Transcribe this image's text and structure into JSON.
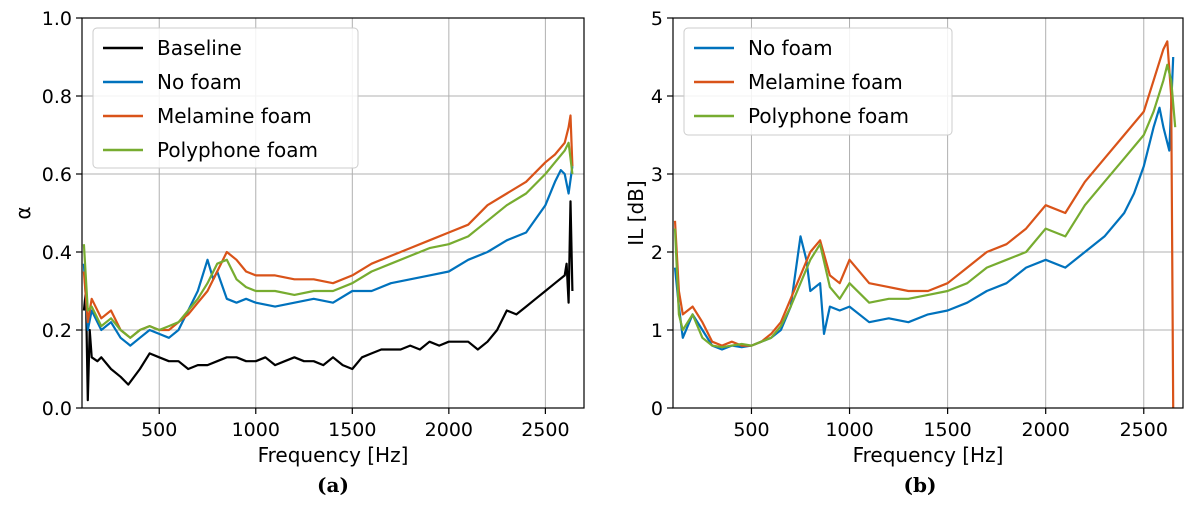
{
  "chart_data": [
    {
      "type": "line",
      "panel_caption": "(a)",
      "xlabel": "Frequency [Hz]",
      "ylabel": "α",
      "xlim": [
        100,
        2700
      ],
      "ylim": [
        0,
        1.0
      ],
      "xticks": [
        500,
        1000,
        1500,
        2000,
        2500
      ],
      "xtick_labels": [
        "500",
        "1000",
        "1500",
        "2000",
        "2500"
      ],
      "yticks": [
        0,
        0.2,
        0.4,
        0.6,
        0.8,
        1.0
      ],
      "ytick_labels": [
        "0.0",
        "0.2",
        "0.4",
        "0.6",
        "0.8",
        "1.0"
      ],
      "grid": true,
      "legend_position": "upper-left",
      "series": [
        {
          "name": "Baseline",
          "color": "#000000",
          "x": [
            110,
            120,
            130,
            140,
            150,
            180,
            200,
            250,
            300,
            340,
            400,
            450,
            500,
            550,
            600,
            650,
            700,
            750,
            800,
            850,
            900,
            950,
            1000,
            1050,
            1100,
            1150,
            1200,
            1250,
            1300,
            1350,
            1400,
            1450,
            1500,
            1550,
            1600,
            1650,
            1700,
            1750,
            1800,
            1850,
            1900,
            1950,
            2000,
            2050,
            2100,
            2150,
            2200,
            2250,
            2300,
            2350,
            2400,
            2450,
            2500,
            2550,
            2600,
            2610,
            2620,
            2630,
            2640
          ],
          "y": [
            0.25,
            0.3,
            0.02,
            0.2,
            0.13,
            0.12,
            0.13,
            0.1,
            0.08,
            0.06,
            0.1,
            0.14,
            0.13,
            0.12,
            0.12,
            0.1,
            0.11,
            0.11,
            0.12,
            0.13,
            0.13,
            0.12,
            0.12,
            0.13,
            0.11,
            0.12,
            0.13,
            0.12,
            0.12,
            0.11,
            0.13,
            0.11,
            0.1,
            0.13,
            0.14,
            0.15,
            0.15,
            0.15,
            0.16,
            0.15,
            0.17,
            0.16,
            0.17,
            0.17,
            0.17,
            0.15,
            0.17,
            0.2,
            0.25,
            0.24,
            0.26,
            0.28,
            0.3,
            0.32,
            0.34,
            0.37,
            0.27,
            0.53,
            0.3
          ]
        },
        {
          "name": "No foam",
          "color": "#0072BD",
          "x": [
            110,
            130,
            150,
            200,
            250,
            300,
            350,
            400,
            450,
            500,
            550,
            600,
            650,
            700,
            750,
            780,
            800,
            850,
            900,
            950,
            1000,
            1100,
            1200,
            1300,
            1400,
            1500,
            1600,
            1700,
            1800,
            1900,
            2000,
            2100,
            2200,
            2300,
            2400,
            2500,
            2550,
            2580,
            2600,
            2620,
            2640
          ],
          "y": [
            0.37,
            0.2,
            0.25,
            0.2,
            0.22,
            0.18,
            0.16,
            0.18,
            0.2,
            0.19,
            0.18,
            0.2,
            0.25,
            0.3,
            0.38,
            0.33,
            0.35,
            0.28,
            0.27,
            0.28,
            0.27,
            0.26,
            0.27,
            0.28,
            0.27,
            0.3,
            0.3,
            0.32,
            0.33,
            0.34,
            0.35,
            0.38,
            0.4,
            0.43,
            0.45,
            0.52,
            0.58,
            0.61,
            0.6,
            0.55,
            0.62
          ]
        },
        {
          "name": "Melamine foam",
          "color": "#D95319",
          "x": [
            110,
            130,
            150,
            200,
            250,
            300,
            350,
            400,
            450,
            500,
            550,
            600,
            650,
            700,
            750,
            800,
            850,
            900,
            950,
            1000,
            1100,
            1200,
            1300,
            1400,
            1500,
            1600,
            1700,
            1800,
            1900,
            2000,
            2100,
            2200,
            2300,
            2400,
            2500,
            2550,
            2600,
            2620,
            2630,
            2640
          ],
          "y": [
            0.35,
            0.22,
            0.28,
            0.23,
            0.25,
            0.2,
            0.18,
            0.2,
            0.21,
            0.2,
            0.2,
            0.22,
            0.24,
            0.27,
            0.3,
            0.35,
            0.4,
            0.38,
            0.35,
            0.34,
            0.34,
            0.33,
            0.33,
            0.32,
            0.34,
            0.37,
            0.39,
            0.41,
            0.43,
            0.45,
            0.47,
            0.52,
            0.55,
            0.58,
            0.63,
            0.65,
            0.68,
            0.72,
            0.75,
            0.62
          ]
        },
        {
          "name": "Polyphone foam",
          "color": "#77AC30",
          "x": [
            110,
            130,
            150,
            200,
            250,
            300,
            350,
            400,
            450,
            500,
            550,
            600,
            650,
            700,
            750,
            800,
            850,
            900,
            950,
            1000,
            1100,
            1200,
            1300,
            1400,
            1500,
            1600,
            1700,
            1800,
            1900,
            2000,
            2100,
            2200,
            2300,
            2400,
            2500,
            2550,
            2600,
            2620,
            2640
          ],
          "y": [
            0.42,
            0.25,
            0.26,
            0.21,
            0.23,
            0.2,
            0.18,
            0.2,
            0.21,
            0.2,
            0.21,
            0.22,
            0.25,
            0.28,
            0.32,
            0.37,
            0.38,
            0.33,
            0.31,
            0.3,
            0.3,
            0.29,
            0.3,
            0.3,
            0.32,
            0.35,
            0.37,
            0.39,
            0.41,
            0.42,
            0.44,
            0.48,
            0.52,
            0.55,
            0.6,
            0.63,
            0.66,
            0.68,
            0.6
          ]
        }
      ]
    },
    {
      "type": "line",
      "panel_caption": "(b)",
      "xlabel": "Frequency [Hz]",
      "ylabel": "IL [dB]",
      "xlim": [
        100,
        2700
      ],
      "ylim": [
        0,
        5
      ],
      "xticks": [
        500,
        1000,
        1500,
        2000,
        2500
      ],
      "xtick_labels": [
        "500",
        "1000",
        "1500",
        "2000",
        "2500"
      ],
      "yticks": [
        0,
        1,
        2,
        3,
        4,
        5
      ],
      "ytick_labels": [
        "0",
        "1",
        "2",
        "3",
        "4",
        "5"
      ],
      "grid": true,
      "legend_position": "upper-left",
      "series": [
        {
          "name": "No foam",
          "color": "#0072BD",
          "x": [
            110,
            130,
            150,
            200,
            250,
            300,
            350,
            400,
            450,
            500,
            550,
            600,
            650,
            700,
            750,
            780,
            800,
            850,
            870,
            900,
            950,
            1000,
            1100,
            1200,
            1300,
            1400,
            1500,
            1600,
            1700,
            1800,
            1900,
            2000,
            2100,
            2200,
            2300,
            2400,
            2450,
            2500,
            2550,
            2580,
            2600,
            2630,
            2650
          ],
          "y": [
            1.8,
            1.3,
            0.9,
            1.2,
            1.0,
            0.8,
            0.75,
            0.8,
            0.78,
            0.8,
            0.85,
            0.9,
            1.0,
            1.3,
            2.2,
            1.9,
            1.5,
            1.6,
            0.95,
            1.3,
            1.25,
            1.3,
            1.1,
            1.15,
            1.1,
            1.2,
            1.25,
            1.35,
            1.5,
            1.6,
            1.8,
            1.9,
            1.8,
            2.0,
            2.2,
            2.5,
            2.75,
            3.1,
            3.6,
            3.85,
            3.6,
            3.3,
            4.5
          ]
        },
        {
          "name": "Melamine foam",
          "color": "#D95319",
          "x": [
            110,
            130,
            150,
            200,
            250,
            300,
            350,
            400,
            450,
            500,
            550,
            600,
            650,
            700,
            750,
            800,
            850,
            900,
            950,
            1000,
            1100,
            1200,
            1300,
            1400,
            1500,
            1600,
            1700,
            1800,
            1900,
            2000,
            2100,
            2200,
            2300,
            2400,
            2500,
            2550,
            2600,
            2620,
            2640,
            2650
          ],
          "y": [
            2.4,
            1.5,
            1.2,
            1.3,
            1.1,
            0.85,
            0.8,
            0.85,
            0.8,
            0.8,
            0.85,
            0.95,
            1.1,
            1.4,
            1.7,
            2.0,
            2.15,
            1.7,
            1.6,
            1.9,
            1.6,
            1.55,
            1.5,
            1.5,
            1.6,
            1.8,
            2.0,
            2.1,
            2.3,
            2.6,
            2.5,
            2.9,
            3.2,
            3.5,
            3.8,
            4.2,
            4.6,
            4.7,
            4.0,
            0
          ]
        },
        {
          "name": "Polyphone foam",
          "color": "#77AC30",
          "x": [
            110,
            130,
            150,
            200,
            250,
            300,
            350,
            400,
            450,
            500,
            550,
            600,
            650,
            700,
            750,
            800,
            850,
            900,
            950,
            1000,
            1100,
            1200,
            1300,
            1400,
            1500,
            1600,
            1700,
            1800,
            1900,
            2000,
            2100,
            2200,
            2300,
            2400,
            2500,
            2550,
            2600,
            2620,
            2640,
            2660
          ],
          "y": [
            2.3,
            1.2,
            1.0,
            1.2,
            0.9,
            0.8,
            0.78,
            0.8,
            0.82,
            0.8,
            0.85,
            0.9,
            1.05,
            1.3,
            1.6,
            1.9,
            2.1,
            1.55,
            1.4,
            1.6,
            1.35,
            1.4,
            1.4,
            1.45,
            1.5,
            1.6,
            1.8,
            1.9,
            2.0,
            2.3,
            2.2,
            2.6,
            2.9,
            3.2,
            3.5,
            3.8,
            4.2,
            4.4,
            4.2,
            3.6
          ]
        }
      ]
    }
  ]
}
